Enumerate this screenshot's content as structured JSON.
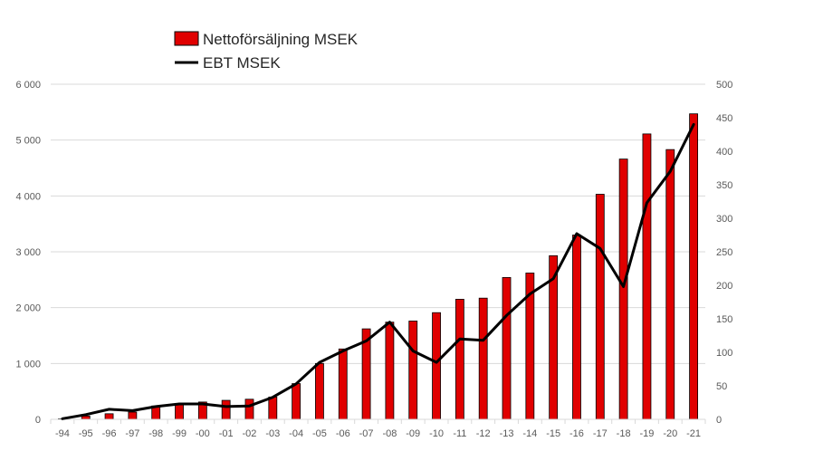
{
  "chart_data": {
    "type": "bar",
    "categories": [
      "-94",
      "-95",
      "-96",
      "-97",
      "-98",
      "-99",
      "-00",
      "-01",
      "-02",
      "-03",
      "-04",
      "-05",
      "-06",
      "-07",
      "-08",
      "-09",
      "-10",
      "-11",
      "-12",
      "-13",
      "-14",
      "-15",
      "-16",
      "-17",
      "-18",
      "-19",
      "-20",
      "-21"
    ],
    "series": [
      {
        "name": "Nettoförsäljning MSEK",
        "type": "bar",
        "axis": "left",
        "color": "#e00000",
        "values": [
          10,
          60,
          100,
          130,
          240,
          280,
          310,
          340,
          360,
          400,
          640,
          1000,
          1260,
          1620,
          1740,
          1760,
          1910,
          2150,
          2170,
          2540,
          2620,
          2930,
          3300,
          4030,
          4660,
          5110,
          4830,
          5470
        ]
      },
      {
        "name": "EBT MSEK",
        "type": "line",
        "axis": "right",
        "color": "#000000",
        "values": [
          1,
          7,
          15,
          13,
          19,
          23,
          23,
          19,
          20,
          33,
          53,
          85,
          102,
          117,
          145,
          102,
          85,
          120,
          118,
          155,
          187,
          210,
          277,
          255,
          198,
          323,
          370,
          440
        ]
      }
    ],
    "y_left": {
      "min": 0,
      "max": 6000,
      "ticks": [
        "0",
        "1 000",
        "2 000",
        "3 000",
        "4 000",
        "5 000",
        "6 000"
      ],
      "tick_values": [
        0,
        1000,
        2000,
        3000,
        4000,
        5000,
        6000
      ]
    },
    "y_right": {
      "min": 0,
      "max": 500,
      "ticks": [
        "0",
        "50",
        "100",
        "150",
        "200",
        "250",
        "300",
        "350",
        "400",
        "450",
        "500"
      ],
      "tick_values": [
        0,
        50,
        100,
        150,
        200,
        250,
        300,
        350,
        400,
        450,
        500
      ]
    },
    "grid": true,
    "legend": "top-left",
    "title": "",
    "xlabel": "",
    "ylabel": ""
  }
}
